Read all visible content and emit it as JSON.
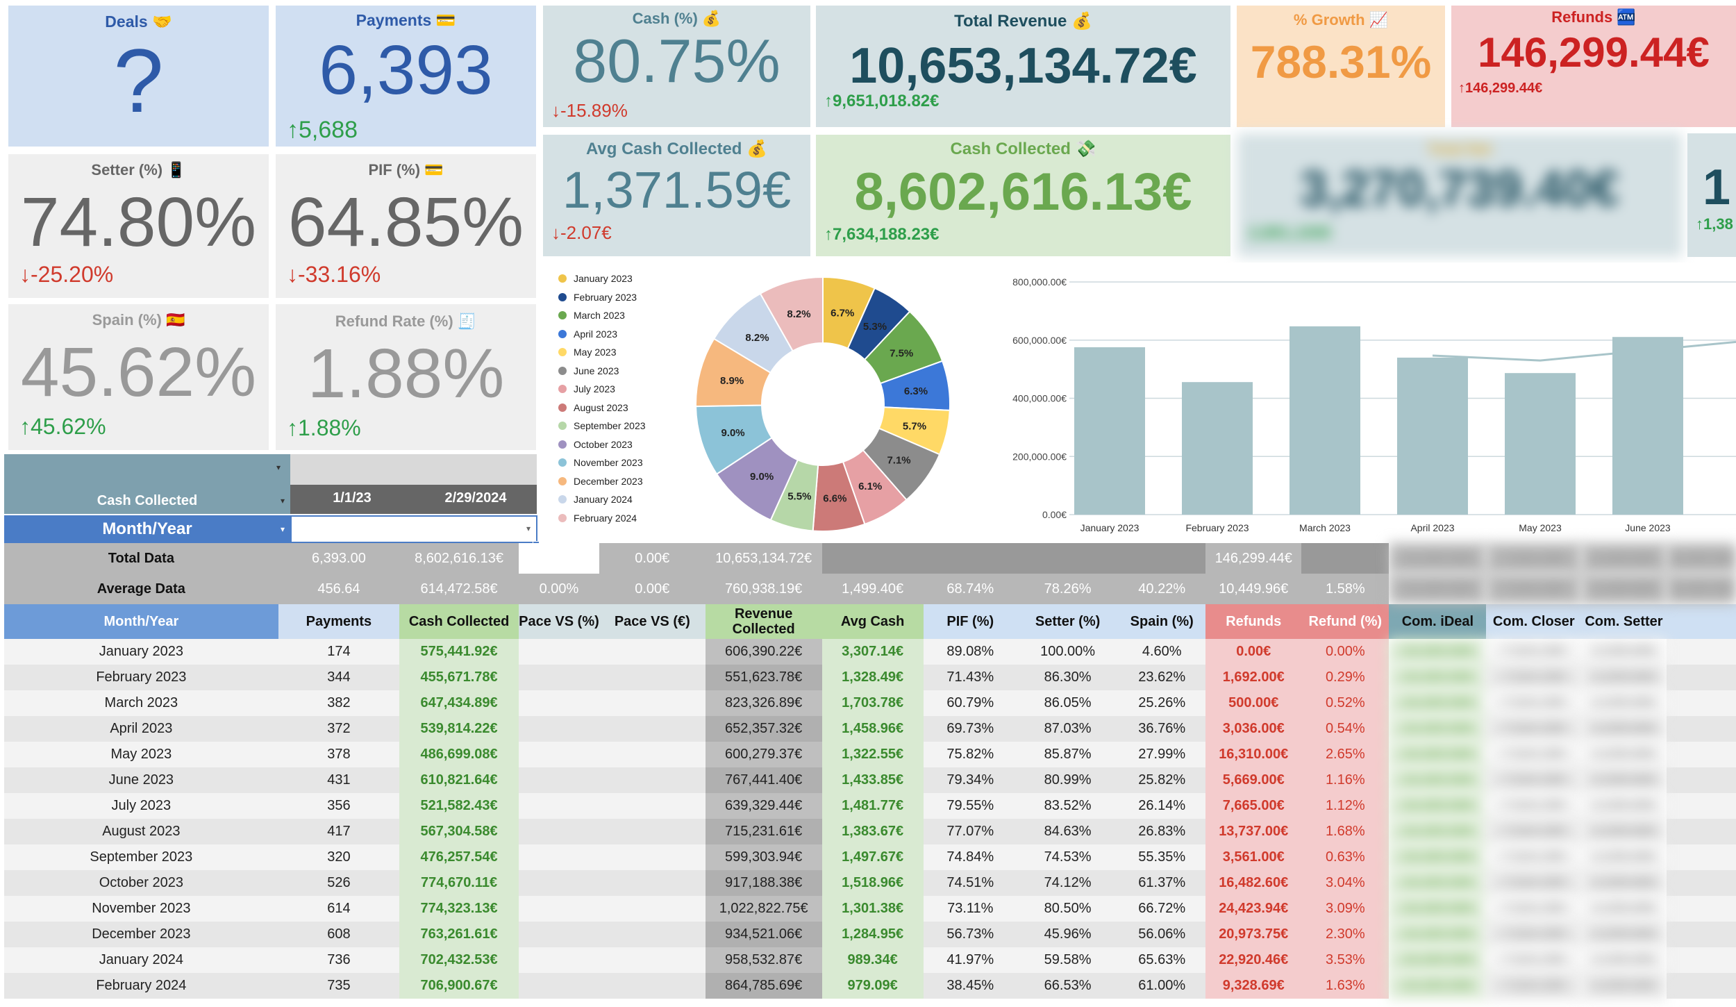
{
  "colors": {
    "blue_card": "#d0dff2",
    "blue_text": "#2e5aa8",
    "gray_card": "#efefef",
    "gray_text": "#666666",
    "light_gray_text": "#999999",
    "teal_card": "#d5e1e4",
    "teal_text": "#4f8090",
    "dark_teal": "#1e4e5e",
    "orange_card": "#fbe2c6",
    "orange_text": "#f09a44",
    "red_card": "#f4cccd",
    "red_text": "#cc2222",
    "green_card": "#d9ead2",
    "green_text": "#6aa84f",
    "up": "#2e9e4a",
    "down": "#d03a2c"
  },
  "kpis": {
    "deals": {
      "title": "Deals 🤝",
      "value": "?"
    },
    "payments": {
      "title": "Payments 💳",
      "value": "6,393",
      "change": "5,688"
    },
    "setter": {
      "title": "Setter (%) 📱",
      "value": "74.80%",
      "change": "-25.20%"
    },
    "pif": {
      "title": "PIF (%) 💳",
      "value": "64.85%",
      "change": "-33.16%"
    },
    "spain": {
      "title": "Spain (%) 🇪🇸",
      "value": "45.62%",
      "change": "45.62%"
    },
    "refund_rate": {
      "title": "Refund Rate (%) 🧾",
      "value": "1.88%",
      "change": "1.88%"
    },
    "cash_pct": {
      "title": "Cash (%) 💰",
      "value": "80.75%",
      "change": "-15.89%"
    },
    "total_revenue": {
      "title": "Total Revenue 💰",
      "value": "10,653,134.72€",
      "change": "9,651,018.82€"
    },
    "growth": {
      "title": "% Growth 📈",
      "value": "788.31%"
    },
    "refunds": {
      "title": "Refunds 🏧",
      "value": "146,299.44€",
      "change": "146,299.44€"
    },
    "avg_cash": {
      "title": "Avg Cash Collected 💰",
      "value": "1,371.59€",
      "change": "-2.07€"
    },
    "cash_collected": {
      "title": "Cash Collected 💸",
      "value": "8,602,616.13€",
      "change": "7,634,188.23€"
    },
    "blurred1": {
      "title": "Total Net",
      "value": "3,270,739.40€",
      "change": "2,891,100€"
    },
    "blurred2": {
      "value": "1",
      "change": "1,38"
    }
  },
  "filters": {
    "cash_collected_label": "Cash Collected",
    "month_year_label": "Month/Year",
    "date_from": "1/1/23",
    "date_to": "2/29/2024"
  },
  "arrows": {
    "up": "↑",
    "down": "↓"
  },
  "chart_data": [
    {
      "type": "pie",
      "categories": [
        "January 2023",
        "February 2023",
        "March 2023",
        "April 2023",
        "May 2023",
        "June 2023",
        "July 2023",
        "August 2023",
        "September 2023",
        "October 2023",
        "November 2023",
        "December 2023",
        "January 2024",
        "February 2024"
      ],
      "values": [
        6.7,
        5.3,
        7.5,
        6.3,
        5.7,
        7.1,
        6.1,
        6.6,
        5.5,
        9.0,
        9.0,
        8.9,
        8.2,
        8.2
      ],
      "labels": [
        "6.7%",
        "5.3%",
        "7.5%",
        "6.3%",
        "5.7%",
        "7.1%",
        "6.1%",
        "6.6%",
        "5.5%",
        "9.0%",
        "9.0%",
        "8.9%",
        "8.2%",
        "8.2%"
      ],
      "colors": [
        "#efc44a",
        "#1f4b8f",
        "#6aa84f",
        "#3c78d8",
        "#ffd966",
        "#8c8c8c",
        "#e6a0a4",
        "#cc7a78",
        "#b6d7a8",
        "#9f91c0",
        "#8cc3d8",
        "#f6b87e",
        "#c9d7ea",
        "#ebbcbc"
      ],
      "legend": "left"
    },
    {
      "type": "bar",
      "categories": [
        "January 2023",
        "February 2023",
        "March 2023",
        "April 2023",
        "May 2023",
        "June 2023"
      ],
      "values": [
        575441.92,
        455671.78,
        647434.89,
        539814.22,
        486699.08,
        610821.64
      ],
      "line_values": [
        null,
        null,
        null,
        547000,
        530000,
        565000
      ],
      "yticks": [
        "0.00€",
        "200,000.00€",
        "400,000.00€",
        "600,000.00€",
        "800,000.00€"
      ],
      "ylim": [
        0,
        800000
      ],
      "bar_color": "#a8c4c9"
    }
  ],
  "table": {
    "total_row": {
      "label": "Total Data",
      "cells": [
        "6,393.00",
        "8,602,616.13€",
        "",
        "0.00€",
        "10,653,134.72€",
        "",
        "",
        "",
        "",
        "146,299.44€",
        ""
      ]
    },
    "avg_row": {
      "label": "Average Data",
      "cells": [
        "456.64",
        "614,472.58€",
        "0.00%",
        "0.00€",
        "760,938.19€",
        "1,499.40€",
        "68.74%",
        "78.26%",
        "40.22%",
        "10,449.96€",
        "1.58%"
      ]
    },
    "headers": [
      "Month/Year",
      "Payments",
      "Cash Collected",
      "Pace VS (%)",
      "Pace VS (€)",
      "Revenue Collected",
      "Avg Cash",
      "PIF (%)",
      "Setter (%)",
      "Spain (%)",
      "Refunds",
      "Refund (%)",
      "Com. iDeal",
      "Com. Closer",
      "Com. Setter"
    ],
    "rows": [
      [
        "January 2023",
        "174",
        "575,441.92€",
        "",
        "",
        "606,390.22€",
        "3,307.14€",
        "89.08%",
        "100.00%",
        "4.60%",
        "0.00€",
        "0.00%"
      ],
      [
        "February 2023",
        "344",
        "455,671.78€",
        "",
        "",
        "551,623.78€",
        "1,328.49€",
        "71.43%",
        "86.30%",
        "23.62%",
        "1,692.00€",
        "0.29%"
      ],
      [
        "March 2023",
        "382",
        "647,434.89€",
        "",
        "",
        "823,326.89€",
        "1,703.78€",
        "60.79%",
        "86.05%",
        "25.26%",
        "500.00€",
        "0.52%"
      ],
      [
        "April 2023",
        "372",
        "539,814.22€",
        "",
        "",
        "652,357.32€",
        "1,458.96€",
        "69.73%",
        "87.03%",
        "36.76%",
        "3,036.00€",
        "0.54%"
      ],
      [
        "May 2023",
        "378",
        "486,699.08€",
        "",
        "",
        "600,279.37€",
        "1,322.55€",
        "75.82%",
        "85.87%",
        "27.99%",
        "16,310.00€",
        "2.65%"
      ],
      [
        "June 2023",
        "431",
        "610,821.64€",
        "",
        "",
        "767,441.40€",
        "1,433.85€",
        "79.34%",
        "80.99%",
        "25.82%",
        "5,669.00€",
        "1.16%"
      ],
      [
        "July 2023",
        "356",
        "521,582.43€",
        "",
        "",
        "639,329.44€",
        "1,481.77€",
        "79.55%",
        "83.52%",
        "26.14%",
        "7,665.00€",
        "1.12%"
      ],
      [
        "August 2023",
        "417",
        "567,304.58€",
        "",
        "",
        "715,231.61€",
        "1,383.67€",
        "77.07%",
        "84.63%",
        "26.83%",
        "13,737.00€",
        "1.68%"
      ],
      [
        "September 2023",
        "320",
        "476,257.54€",
        "",
        "",
        "599,303.94€",
        "1,497.67€",
        "74.84%",
        "74.53%",
        "55.35%",
        "3,561.00€",
        "0.63%"
      ],
      [
        "October 2023",
        "526",
        "774,670.11€",
        "",
        "",
        "917,188.38€",
        "1,518.96€",
        "74.51%",
        "74.12%",
        "61.37%",
        "16,482.60€",
        "3.04%"
      ],
      [
        "November 2023",
        "614",
        "774,323.13€",
        "",
        "",
        "1,022,822.75€",
        "1,301.38€",
        "73.11%",
        "80.50%",
        "66.72%",
        "24,423.94€",
        "3.09%"
      ],
      [
        "December 2023",
        "608",
        "763,261.61€",
        "",
        "",
        "934,521.06€",
        "1,284.95€",
        "56.73%",
        "45.96%",
        "56.06%",
        "20,973.75€",
        "2.30%"
      ],
      [
        "January 2024",
        "736",
        "702,432.53€",
        "",
        "",
        "958,532.87€",
        "989.34€",
        "41.97%",
        "59.58%",
        "65.63%",
        "22,920.46€",
        "3.53%"
      ],
      [
        "February 2024",
        "735",
        "706,900.67€",
        "",
        "",
        "864,785.69€",
        "979.09€",
        "38.45%",
        "66.53%",
        "61.00%",
        "9,328.69€",
        "1.63%"
      ]
    ],
    "blurred_cells": [
      "10,283.50€",
      "7,524.20€",
      "3,209.60€"
    ]
  }
}
